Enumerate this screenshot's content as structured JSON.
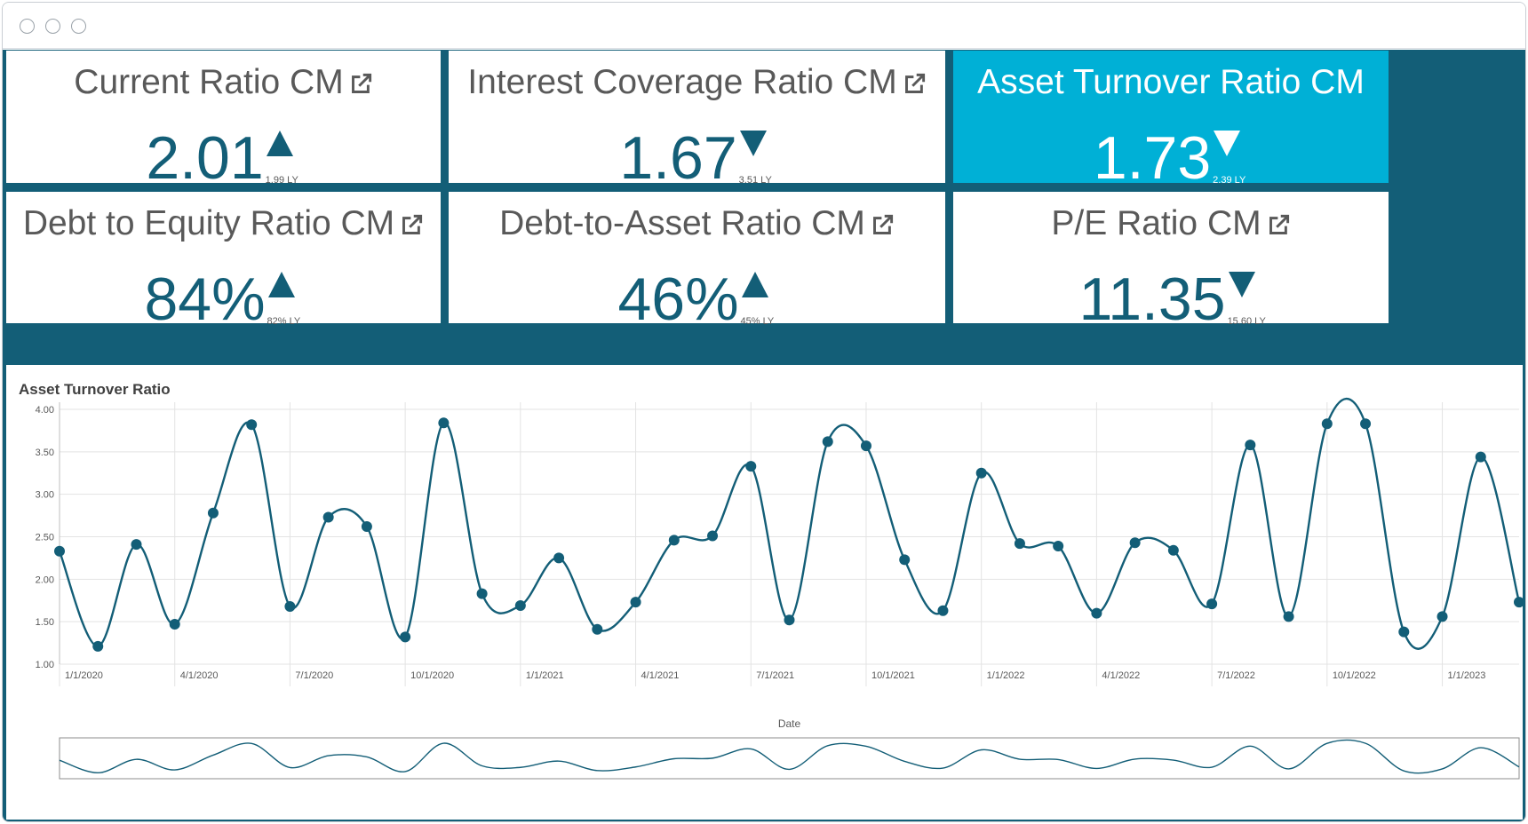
{
  "window": {
    "controls": [
      "close",
      "minimize",
      "maximize"
    ]
  },
  "colors": {
    "primary": "#135e77",
    "highlight": "#00b0d6",
    "text": "#595959"
  },
  "kpis": [
    {
      "title": "Current Ratio CM",
      "value": "2.01",
      "trend": "up",
      "ly": "1.99 LY",
      "icon": "external-link-icon"
    },
    {
      "title": "Interest Coverage Ratio CM",
      "value": "1.67",
      "trend": "down",
      "ly": "3.51 LY",
      "icon": "external-link-icon"
    },
    {
      "title": "Asset Turnover Ratio CM",
      "value": "1.73",
      "trend": "down",
      "ly": "2.39 LY",
      "selected": true
    },
    {
      "title": "Debt to Equity Ratio CM",
      "value": "84%",
      "trend": "up",
      "ly": "82% LY",
      "icon": "external-link-icon"
    },
    {
      "title": "Debt-to-Asset Ratio CM",
      "value": "46%",
      "trend": "up",
      "ly": "45% LY",
      "icon": "external-link-icon"
    },
    {
      "title": "P/E Ratio CM",
      "value": "11.35",
      "trend": "down",
      "ly": "15.60 LY",
      "icon": "external-link-icon"
    }
  ],
  "chart": {
    "title": "Asset Turnover Ratio",
    "xlabel": "Date"
  },
  "chart_data": {
    "type": "line",
    "title": "Asset Turnover Ratio",
    "xlabel": "Date",
    "ylabel": "",
    "ylim": [
      1.0,
      4.0
    ],
    "yticks": [
      "1.00",
      "1.50",
      "2.00",
      "2.50",
      "3.00",
      "3.50",
      "4.00"
    ],
    "xticks": [
      "1/1/2020",
      "4/1/2020",
      "7/1/2020",
      "10/1/2020",
      "1/1/2021",
      "4/1/2021",
      "7/1/2021",
      "10/1/2021",
      "1/1/2022",
      "4/1/2022",
      "7/1/2022",
      "10/1/2022",
      "1/1/2023"
    ],
    "x": [
      "1/1/2020",
      "2/1/2020",
      "3/1/2020",
      "4/1/2020",
      "5/1/2020",
      "6/1/2020",
      "7/1/2020",
      "8/1/2020",
      "9/1/2020",
      "10/1/2020",
      "11/1/2020",
      "12/1/2020",
      "1/1/2021",
      "2/1/2021",
      "3/1/2021",
      "4/1/2021",
      "5/1/2021",
      "6/1/2021",
      "7/1/2021",
      "8/1/2021",
      "9/1/2021",
      "10/1/2021",
      "11/1/2021",
      "12/1/2021",
      "1/1/2022",
      "2/1/2022",
      "3/1/2022",
      "4/1/2022",
      "5/1/2022",
      "6/1/2022",
      "7/1/2022",
      "8/1/2022",
      "9/1/2022",
      "10/1/2022",
      "11/1/2022",
      "12/1/2022",
      "1/1/2023",
      "2/1/2023",
      "3/1/2023"
    ],
    "series": [
      {
        "values": [
          2.33,
          1.21,
          2.41,
          1.47,
          2.78,
          3.82,
          1.68,
          2.73,
          2.62,
          1.32,
          3.84,
          1.83,
          1.69,
          2.25,
          1.41,
          1.73,
          2.46,
          2.51,
          3.33,
          1.52,
          3.62,
          3.57,
          2.23,
          1.63,
          3.25,
          2.42,
          2.39,
          1.6,
          2.43,
          2.34,
          1.71,
          3.58,
          1.56,
          3.83,
          3.83,
          1.38,
          1.56,
          3.44,
          1.73
        ]
      }
    ],
    "grid": true,
    "legend": "none",
    "navigator": true
  }
}
